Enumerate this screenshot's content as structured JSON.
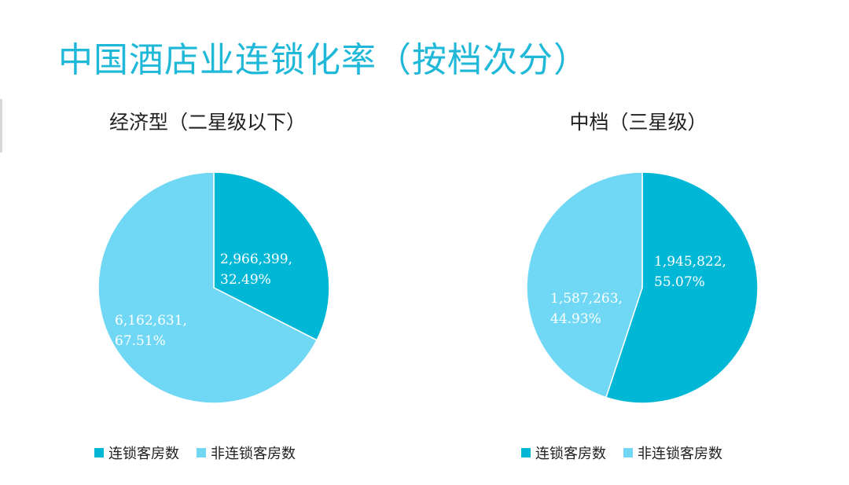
{
  "slide": {
    "title": "中国酒店业连锁化率（按档次分）"
  },
  "colors": {
    "title": "#1fb8d8",
    "chain": "#00b7d6",
    "non_chain": "#70d8f4"
  },
  "chart_data": [
    {
      "type": "pie",
      "title": "经济型（二星级以下）",
      "legend_position": "bottom",
      "slices": [
        {
          "name": "连锁客房数",
          "value": 2966399,
          "value_label": "2,966,399,",
          "percent_label": "32.49%",
          "color": "#00b7d6"
        },
        {
          "name": "非连锁客房数",
          "value": 6162631,
          "value_label": "6,162,631,",
          "percent_label": "67.51%",
          "color": "#70d8f4"
        }
      ]
    },
    {
      "type": "pie",
      "title": "中档（三星级）",
      "legend_position": "bottom",
      "slices": [
        {
          "name": "连锁客房数",
          "value": 1945822,
          "value_label": "1,945,822,",
          "percent_label": "55.07%",
          "color": "#00b7d6"
        },
        {
          "name": "非连锁客房数",
          "value": 1587263,
          "value_label": "1,587,263,",
          "percent_label": "44.93%",
          "color": "#70d8f4"
        }
      ]
    }
  ]
}
